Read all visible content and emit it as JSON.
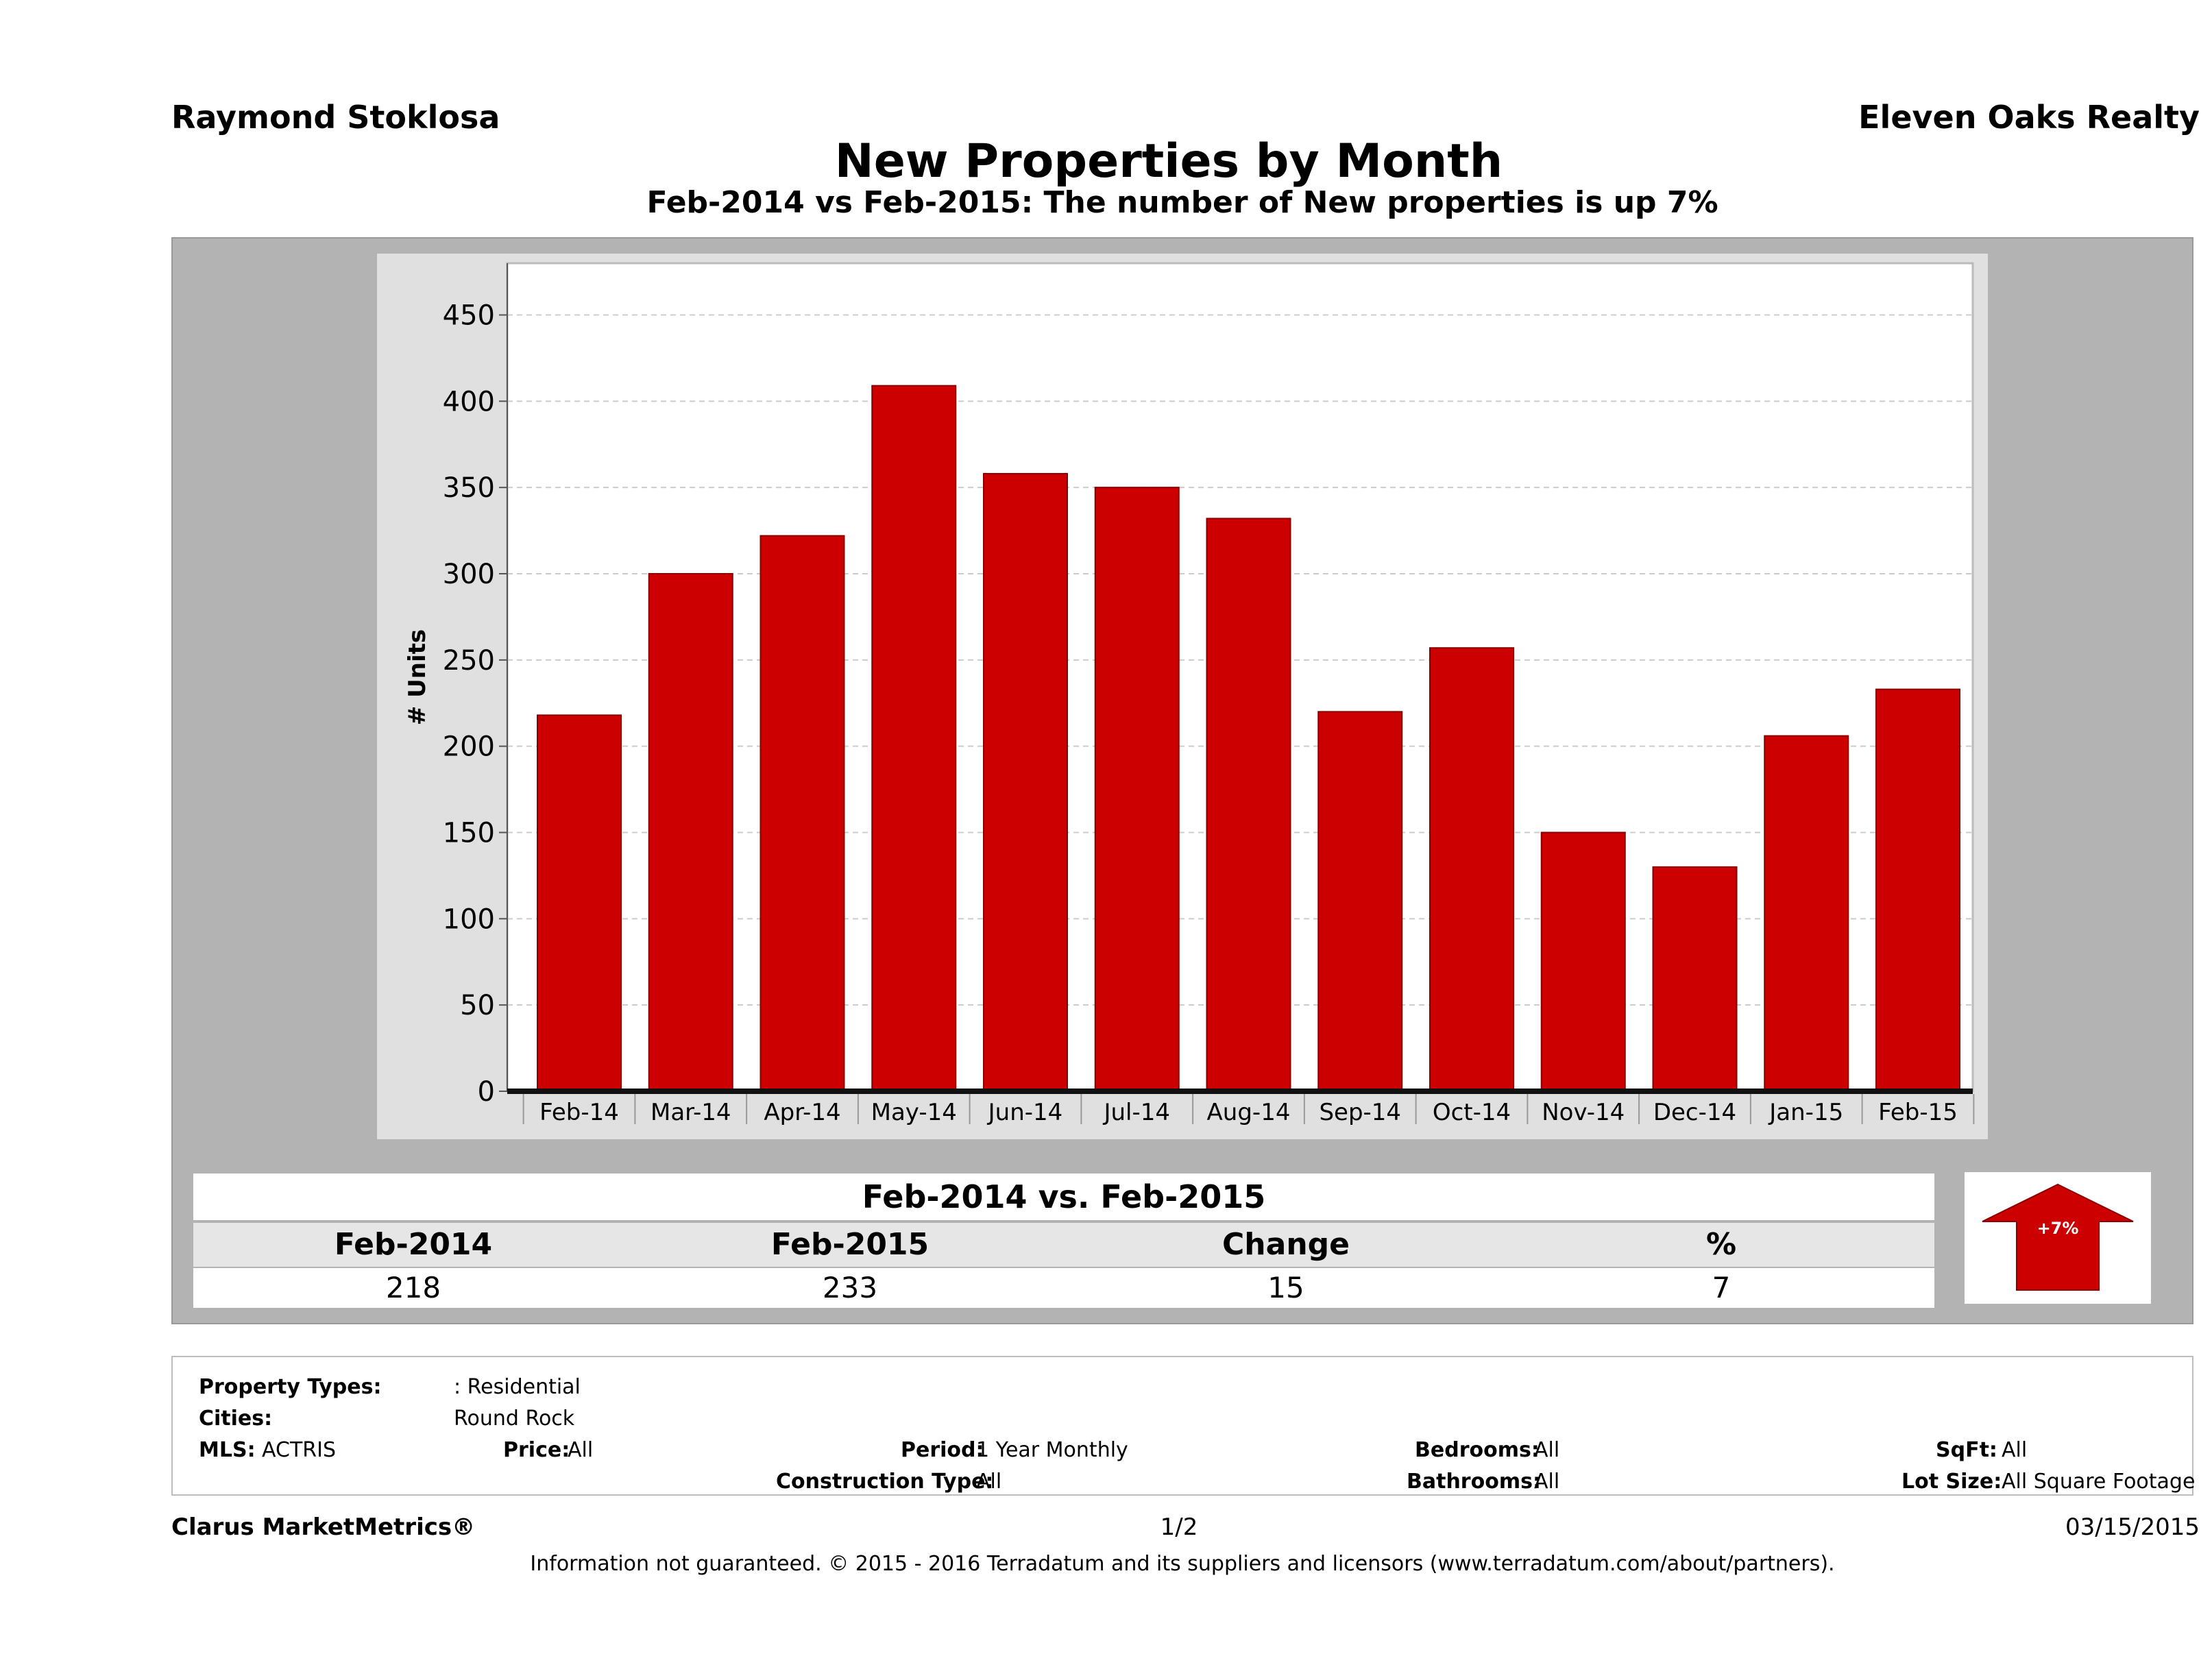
{
  "header": {
    "agent_name": "Raymond Stoklosa",
    "company": "Eleven Oaks Realty",
    "title": "New Properties by Month",
    "subtitle": "Feb-2014 vs Feb-2015: The number of New   properties is up 7%"
  },
  "chart_data": {
    "type": "bar",
    "categories": [
      "Feb-14",
      "Mar-14",
      "Apr-14",
      "May-14",
      "Jun-14",
      "Jul-14",
      "Aug-14",
      "Sep-14",
      "Oct-14",
      "Nov-14",
      "Dec-14",
      "Jan-15",
      "Feb-15"
    ],
    "values": [
      218,
      300,
      322,
      409,
      358,
      350,
      332,
      220,
      257,
      150,
      130,
      206,
      233
    ],
    "ylabel": "# Units",
    "ylim": [
      0,
      480
    ],
    "yticks": [
      0,
      50,
      100,
      150,
      200,
      250,
      300,
      350,
      400,
      450
    ],
    "grid": true,
    "bar_color": "#cc0000"
  },
  "summary": {
    "heading": "Feb-2014 vs. Feb-2015",
    "columns": [
      "Feb-2014",
      "Feb-2015",
      "Change",
      "%"
    ],
    "values": [
      "218",
      "233",
      "15",
      "7"
    ],
    "badge": "+7%",
    "badge_color": "#cc0000",
    "badge_direction": "up"
  },
  "criteria": {
    "property_types_label": "Property Types:",
    "property_types_value": ": Residential",
    "cities_label": "Cities:",
    "cities_value": "Round Rock",
    "mls_label": "MLS:",
    "mls_value": "ACTRIS",
    "price_label": "Price:",
    "price_value": "All",
    "period_label": "Period:",
    "period_value": "1 Year Monthly",
    "construction_label": "Construction Type:",
    "construction_value": "All",
    "bedrooms_label": "Bedrooms:",
    "bedrooms_value": "All",
    "bathrooms_label": "Bathrooms:",
    "bathrooms_value": "All",
    "sqft_label": "SqFt:",
    "sqft_value": "All",
    "lotsize_label": "Lot Size:",
    "lotsize_value": "All Square Footage"
  },
  "footer": {
    "brand": "Clarus MarketMetrics®",
    "page": "1/2",
    "date": "03/15/2015",
    "disclaimer": "Information not guaranteed. © 2015 - 2016 Terradatum and its suppliers and licensors (www.terradatum.com/about/partners)."
  }
}
